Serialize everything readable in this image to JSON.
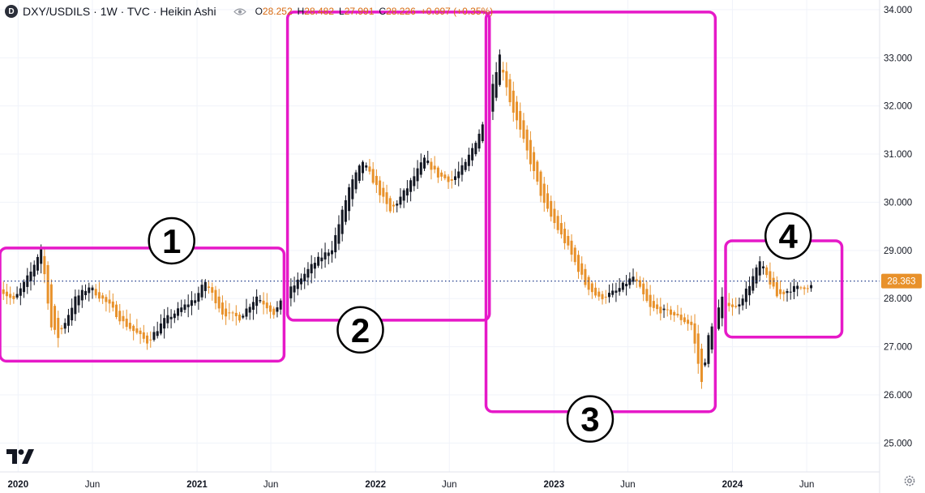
{
  "legend": {
    "symbol_badge": "D",
    "title": "DXY/USDILS · 1W · TVC · Heikin Ashi",
    "open_label": "O",
    "open": "28.252",
    "high_label": "H",
    "high": "28.482",
    "low_label": "L",
    "low": "27.991",
    "close_label": "C",
    "close": "28.226",
    "change": "+0.097 (+0.35%)",
    "icons": [
      "eye-icon"
    ]
  },
  "colors": {
    "up": "#131722",
    "down": "#e8912a",
    "box": "#e619c8",
    "price_line": "#1e3a8a",
    "price_badge": "#e8912a"
  },
  "chart_data": {
    "type": "candlestick",
    "subtype": "Heikin Ashi",
    "title": "DXY/USDILS · 1W · TVC · Heikin Ashi",
    "y_range": [
      24.4,
      34.2
    ],
    "y_ticks": [
      "34.000",
      "33.000",
      "32.000",
      "31.000",
      "30.000",
      "29.000",
      "28.000",
      "27.000",
      "26.000",
      "25.000"
    ],
    "x_range": [
      "2019-11-25",
      "2024-10-28"
    ],
    "x_ticks": [
      {
        "date": "2020-01-01",
        "label": "2020",
        "bold": true
      },
      {
        "date": "2020-06-01",
        "label": "Jun",
        "bold": false
      },
      {
        "date": "2021-01-01",
        "label": "2021",
        "bold": true
      },
      {
        "date": "2021-06-01",
        "label": "Jun",
        "bold": false
      },
      {
        "date": "2022-01-01",
        "label": "2022",
        "bold": true
      },
      {
        "date": "2022-06-01",
        "label": "Jun",
        "bold": false
      },
      {
        "date": "2023-01-01",
        "label": "2023",
        "bold": true
      },
      {
        "date": "2023-06-01",
        "label": "Jun",
        "bold": false
      },
      {
        "date": "2024-01-01",
        "label": "2024",
        "bold": true
      },
      {
        "date": "2024-06-01",
        "label": "Jun",
        "bold": false
      }
    ],
    "last_price": 28.363,
    "last_price_label": "28.363",
    "price_anchors": [
      [
        "2019-11-25",
        28.25
      ],
      [
        "2019-12-30",
        27.95
      ],
      [
        "2020-02-03",
        28.55
      ],
      [
        "2020-02-24",
        29.05
      ],
      [
        "2020-03-16",
        27.4
      ],
      [
        "2020-03-30",
        27.2
      ],
      [
        "2020-05-04",
        28.0
      ],
      [
        "2020-06-01",
        28.25
      ],
      [
        "2020-07-13",
        27.85
      ],
      [
        "2020-08-10",
        27.5
      ],
      [
        "2020-09-28",
        27.1
      ],
      [
        "2020-11-02",
        27.55
      ],
      [
        "2021-01-04",
        28.0
      ],
      [
        "2021-01-25",
        28.35
      ],
      [
        "2021-03-01",
        27.7
      ],
      [
        "2021-04-05",
        27.6
      ],
      [
        "2021-05-10",
        28.05
      ],
      [
        "2021-06-14",
        27.7
      ],
      [
        "2021-07-19",
        28.2
      ],
      [
        "2021-09-06",
        28.75
      ],
      [
        "2021-10-11",
        29.05
      ],
      [
        "2021-11-15",
        30.3
      ],
      [
        "2021-12-13",
        30.85
      ],
      [
        "2022-01-03",
        30.45
      ],
      [
        "2022-02-07",
        29.8
      ],
      [
        "2022-03-14",
        30.3
      ],
      [
        "2022-04-18",
        30.9
      ],
      [
        "2022-05-16",
        30.55
      ],
      [
        "2022-06-13",
        30.45
      ],
      [
        "2022-07-11",
        30.8
      ],
      [
        "2022-08-15",
        31.6
      ],
      [
        "2022-09-19",
        33.05
      ],
      [
        "2022-10-10",
        32.1
      ],
      [
        "2022-11-14",
        31.05
      ],
      [
        "2022-12-19",
        29.95
      ],
      [
        "2023-02-06",
        29.05
      ],
      [
        "2023-03-13",
        28.3
      ],
      [
        "2023-04-10",
        28.0
      ],
      [
        "2023-05-15",
        28.15
      ],
      [
        "2023-06-19",
        28.45
      ],
      [
        "2023-07-24",
        27.8
      ],
      [
        "2023-09-04",
        27.7
      ],
      [
        "2023-10-16",
        27.45
      ],
      [
        "2023-11-06",
        26.25
      ],
      [
        "2023-11-20",
        27.2
      ],
      [
        "2023-12-18",
        28.0
      ],
      [
        "2024-01-15",
        27.8
      ],
      [
        "2024-02-12",
        28.3
      ],
      [
        "2024-03-04",
        28.75
      ],
      [
        "2024-04-08",
        28.05
      ],
      [
        "2024-05-06",
        28.2
      ],
      [
        "2024-06-10",
        28.26
      ]
    ],
    "annotations": [
      {
        "label": "1",
        "box": {
          "start": "2019-11-25",
          "end": "2021-06-28",
          "top": 29.05,
          "bottom": 26.7
        },
        "marker": {
          "date": "2020-11-10",
          "value": 29.2
        }
      },
      {
        "label": "2",
        "box": {
          "start": "2021-07-05",
          "end": "2022-08-22",
          "top": 33.95,
          "bottom": 27.55
        },
        "marker": {
          "date": "2021-12-01",
          "value": 27.35
        }
      },
      {
        "label": "3",
        "box": {
          "start": "2022-08-15",
          "end": "2023-11-27",
          "top": 33.95,
          "bottom": 25.65
        },
        "marker": {
          "date": "2023-03-16",
          "value": 25.5
        }
      },
      {
        "label": "4",
        "box": {
          "start": "2023-12-18",
          "end": "2024-08-12",
          "top": 29.2,
          "bottom": 27.2
        },
        "marker": {
          "date": "2024-04-24",
          "value": 29.3
        }
      }
    ]
  }
}
